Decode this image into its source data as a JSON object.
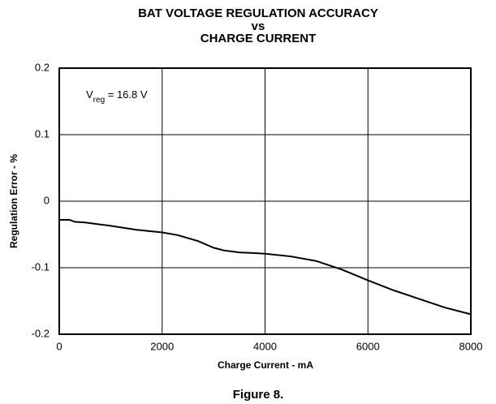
{
  "chart_data": {
    "type": "line",
    "title": [
      "BAT VOLTAGE REGULATION ACCURACY",
      "vs",
      "CHARGE CURRENT"
    ],
    "xlabel": "Charge Current - mA",
    "ylabel": "Regulation Error - %",
    "annotation": {
      "main": "V",
      "sub": "reg",
      "rest": " = 16.8 V"
    },
    "caption": "Figure 8.",
    "x": [
      0,
      200,
      300,
      500,
      800,
      1000,
      1500,
      2000,
      2300,
      2700,
      3000,
      3200,
      3500,
      3800,
      4000,
      4500,
      5000,
      5500,
      6000,
      6500,
      7000,
      7500,
      8000
    ],
    "series": [
      {
        "color": "#000000",
        "values": [
          -0.028,
          -0.028,
          -0.031,
          -0.032,
          -0.035,
          -0.037,
          -0.043,
          -0.047,
          -0.051,
          -0.06,
          -0.07,
          -0.074,
          -0.077,
          -0.078,
          -0.079,
          -0.083,
          -0.09,
          -0.103,
          -0.119,
          -0.134,
          -0.147,
          -0.16,
          -0.17
        ]
      }
    ],
    "xlim": [
      0,
      8000
    ],
    "xticks": [
      0,
      2000,
      4000,
      6000,
      8000
    ],
    "ylim": [
      -0.2,
      0.2
    ],
    "yticks": [
      -0.2,
      -0.1,
      0,
      0.1,
      0.2
    ],
    "grid": true
  }
}
